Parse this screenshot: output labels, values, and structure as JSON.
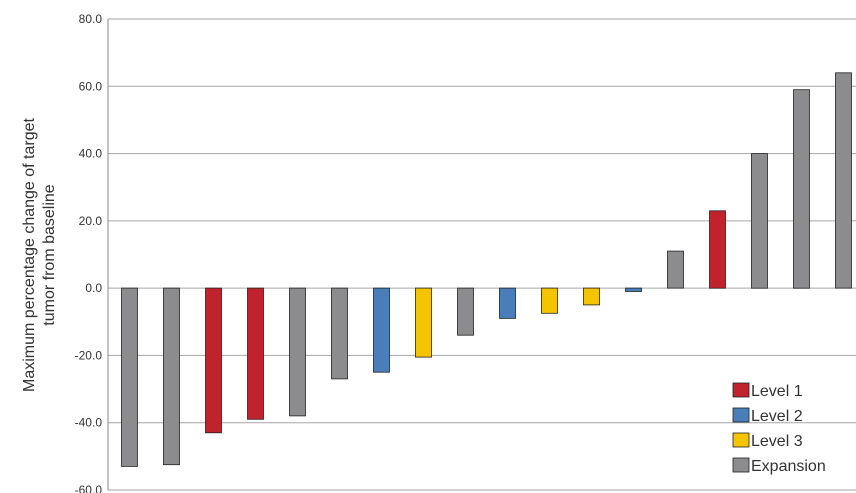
{
  "chart_data": {
    "type": "bar",
    "title": "",
    "xlabel": "",
    "ylabel_lines": [
      "Maximum percentage change of target",
      "tumor from baseline"
    ],
    "ylim": [
      -60,
      80
    ],
    "yticks": [
      80,
      60,
      40,
      20,
      0,
      -20,
      -40,
      -60
    ],
    "ytick_labels": [
      "80.0",
      "60.0",
      "40.0",
      "20.0",
      "0.0",
      "-20.0",
      "-40.0",
      "-60.0"
    ],
    "grid": "horizontal",
    "legend_position": "bottom-right",
    "series": [
      {
        "name": "Level 1",
        "color": "#c0232b"
      },
      {
        "name": "Level 2",
        "color": "#4a7ebb"
      },
      {
        "name": "Level 3",
        "color": "#f5c400"
      },
      {
        "name": "Expansion",
        "color": "#8c8c8e"
      }
    ],
    "bars": [
      {
        "value": -53,
        "series": "Expansion"
      },
      {
        "value": -52.5,
        "series": "Expansion"
      },
      {
        "value": -43,
        "series": "Level 1"
      },
      {
        "value": -39,
        "series": "Level 1"
      },
      {
        "value": -38,
        "series": "Expansion"
      },
      {
        "value": -27,
        "series": "Expansion"
      },
      {
        "value": -25,
        "series": "Level 2"
      },
      {
        "value": -20.5,
        "series": "Level 3"
      },
      {
        "value": -14,
        "series": "Expansion"
      },
      {
        "value": -9,
        "series": "Level 2"
      },
      {
        "value": -7.5,
        "series": "Level 3"
      },
      {
        "value": -5,
        "series": "Level 3"
      },
      {
        "value": -1,
        "series": "Level 2"
      },
      {
        "value": 11,
        "series": "Expansion"
      },
      {
        "value": 23,
        "series": "Level 1"
      },
      {
        "value": 40,
        "series": "Expansion"
      },
      {
        "value": 59,
        "series": "Expansion"
      },
      {
        "value": 64,
        "series": "Expansion"
      }
    ]
  }
}
